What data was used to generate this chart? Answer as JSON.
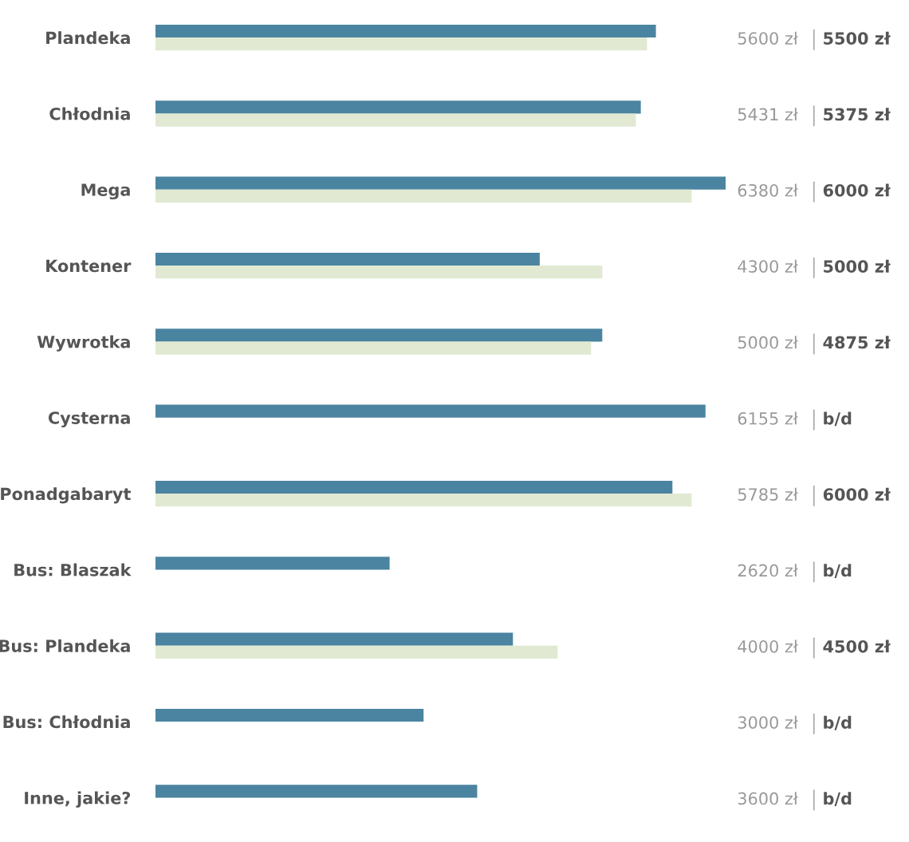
{
  "chart_data": {
    "type": "bar",
    "orientation": "horizontal",
    "categories": [
      "Plandeka",
      "Chłodnia",
      "Mega",
      "Kontener",
      "Wywrotka",
      "Cysterna",
      "Ponadgabaryt",
      "Bus: Blaszak",
      "Bus: Plandeka",
      "Bus: Chłodnia",
      "Inne, jakie?"
    ],
    "xlim": [
      0,
      6380
    ],
    "tick_labels": "y",
    "legend": false,
    "grid": false,
    "series": [
      {
        "color": "#4a84a0",
        "values": [
          5600,
          5431,
          6380,
          4300,
          5000,
          6155,
          5785,
          2620,
          4000,
          3000,
          3600
        ],
        "value_labels": [
          "5600 zł",
          "5431 zł",
          "6380 zł",
          "4300 zł",
          "5000 zł",
          "6155 zł",
          "5785 zł",
          "2620 zł",
          "4000 zł",
          "3000 zł",
          "3600 zł"
        ]
      },
      {
        "color": "#e1e9d2",
        "values": [
          5500,
          5375,
          6000,
          5000,
          4875,
          null,
          6000,
          null,
          4500,
          null,
          null
        ],
        "value_labels": [
          "5500 zł",
          "5375 zł",
          "6000 zł",
          "5000 zł",
          "4875 zł",
          "b/d",
          "6000 zł",
          "b/d",
          "4500 zł",
          "b/d",
          "b/d"
        ]
      }
    ]
  }
}
